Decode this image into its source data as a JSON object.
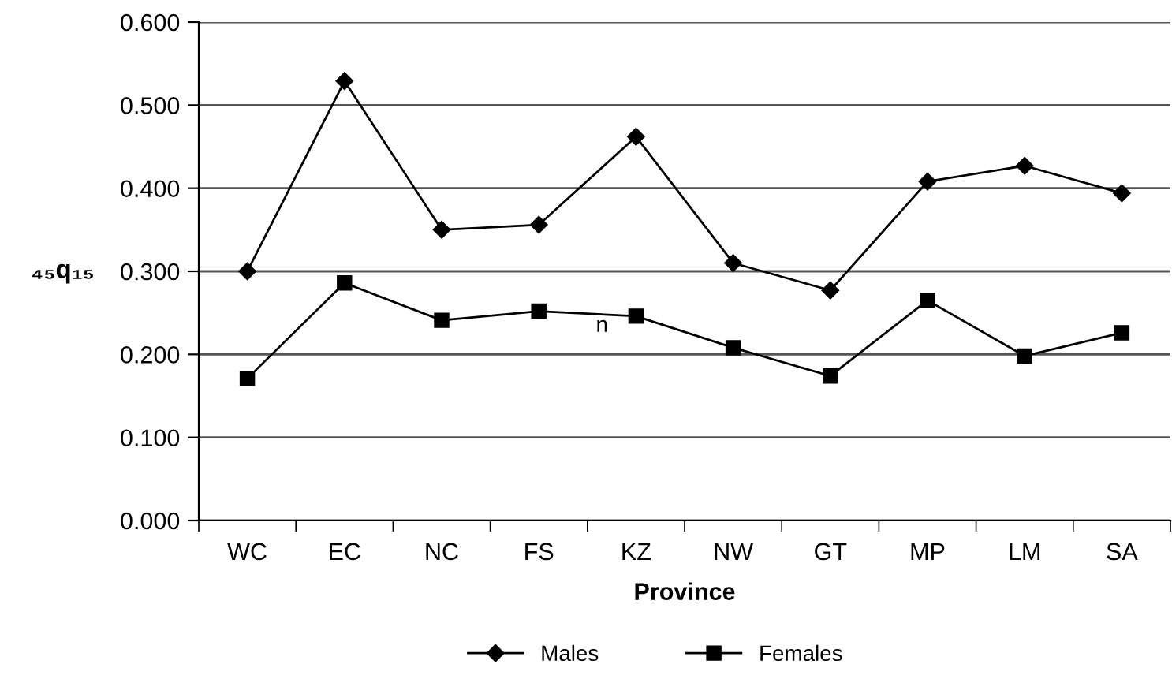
{
  "chart_data": {
    "type": "line",
    "xlabel": "Province",
    "ylabel": "₄₅q₁₅",
    "categories": [
      "WC",
      "EC",
      "NC",
      "FS",
      "KZ",
      "NW",
      "GT",
      "MP",
      "LM",
      "SA"
    ],
    "series": [
      {
        "name": "Males",
        "color": "#000000",
        "marker": "diamond",
        "values": [
          0.3,
          0.529,
          0.35,
          0.356,
          0.462,
          0.31,
          0.277,
          0.408,
          0.427,
          0.394
        ]
      },
      {
        "name": "Females",
        "color": "#000000",
        "marker": "square",
        "values": [
          0.171,
          0.286,
          0.241,
          0.252,
          0.246,
          0.208,
          0.174,
          0.265,
          0.198,
          0.226
        ]
      }
    ],
    "ylim": [
      0,
      0.6
    ],
    "yticks": [
      {
        "value": 0,
        "label": "0.000"
      },
      {
        "value": 0.1,
        "label": "0.100"
      },
      {
        "value": 0.2,
        "label": "0.200"
      },
      {
        "value": 0.3,
        "label": "0.300"
      },
      {
        "value": 0.4,
        "label": "0.400"
      },
      {
        "value": 0.5,
        "label": "0.500"
      },
      {
        "value": 0.6,
        "label": "0.600"
      }
    ],
    "grid": "y",
    "legend": "bottom",
    "line_style": "solid",
    "annotations": [
      "n"
    ]
  }
}
